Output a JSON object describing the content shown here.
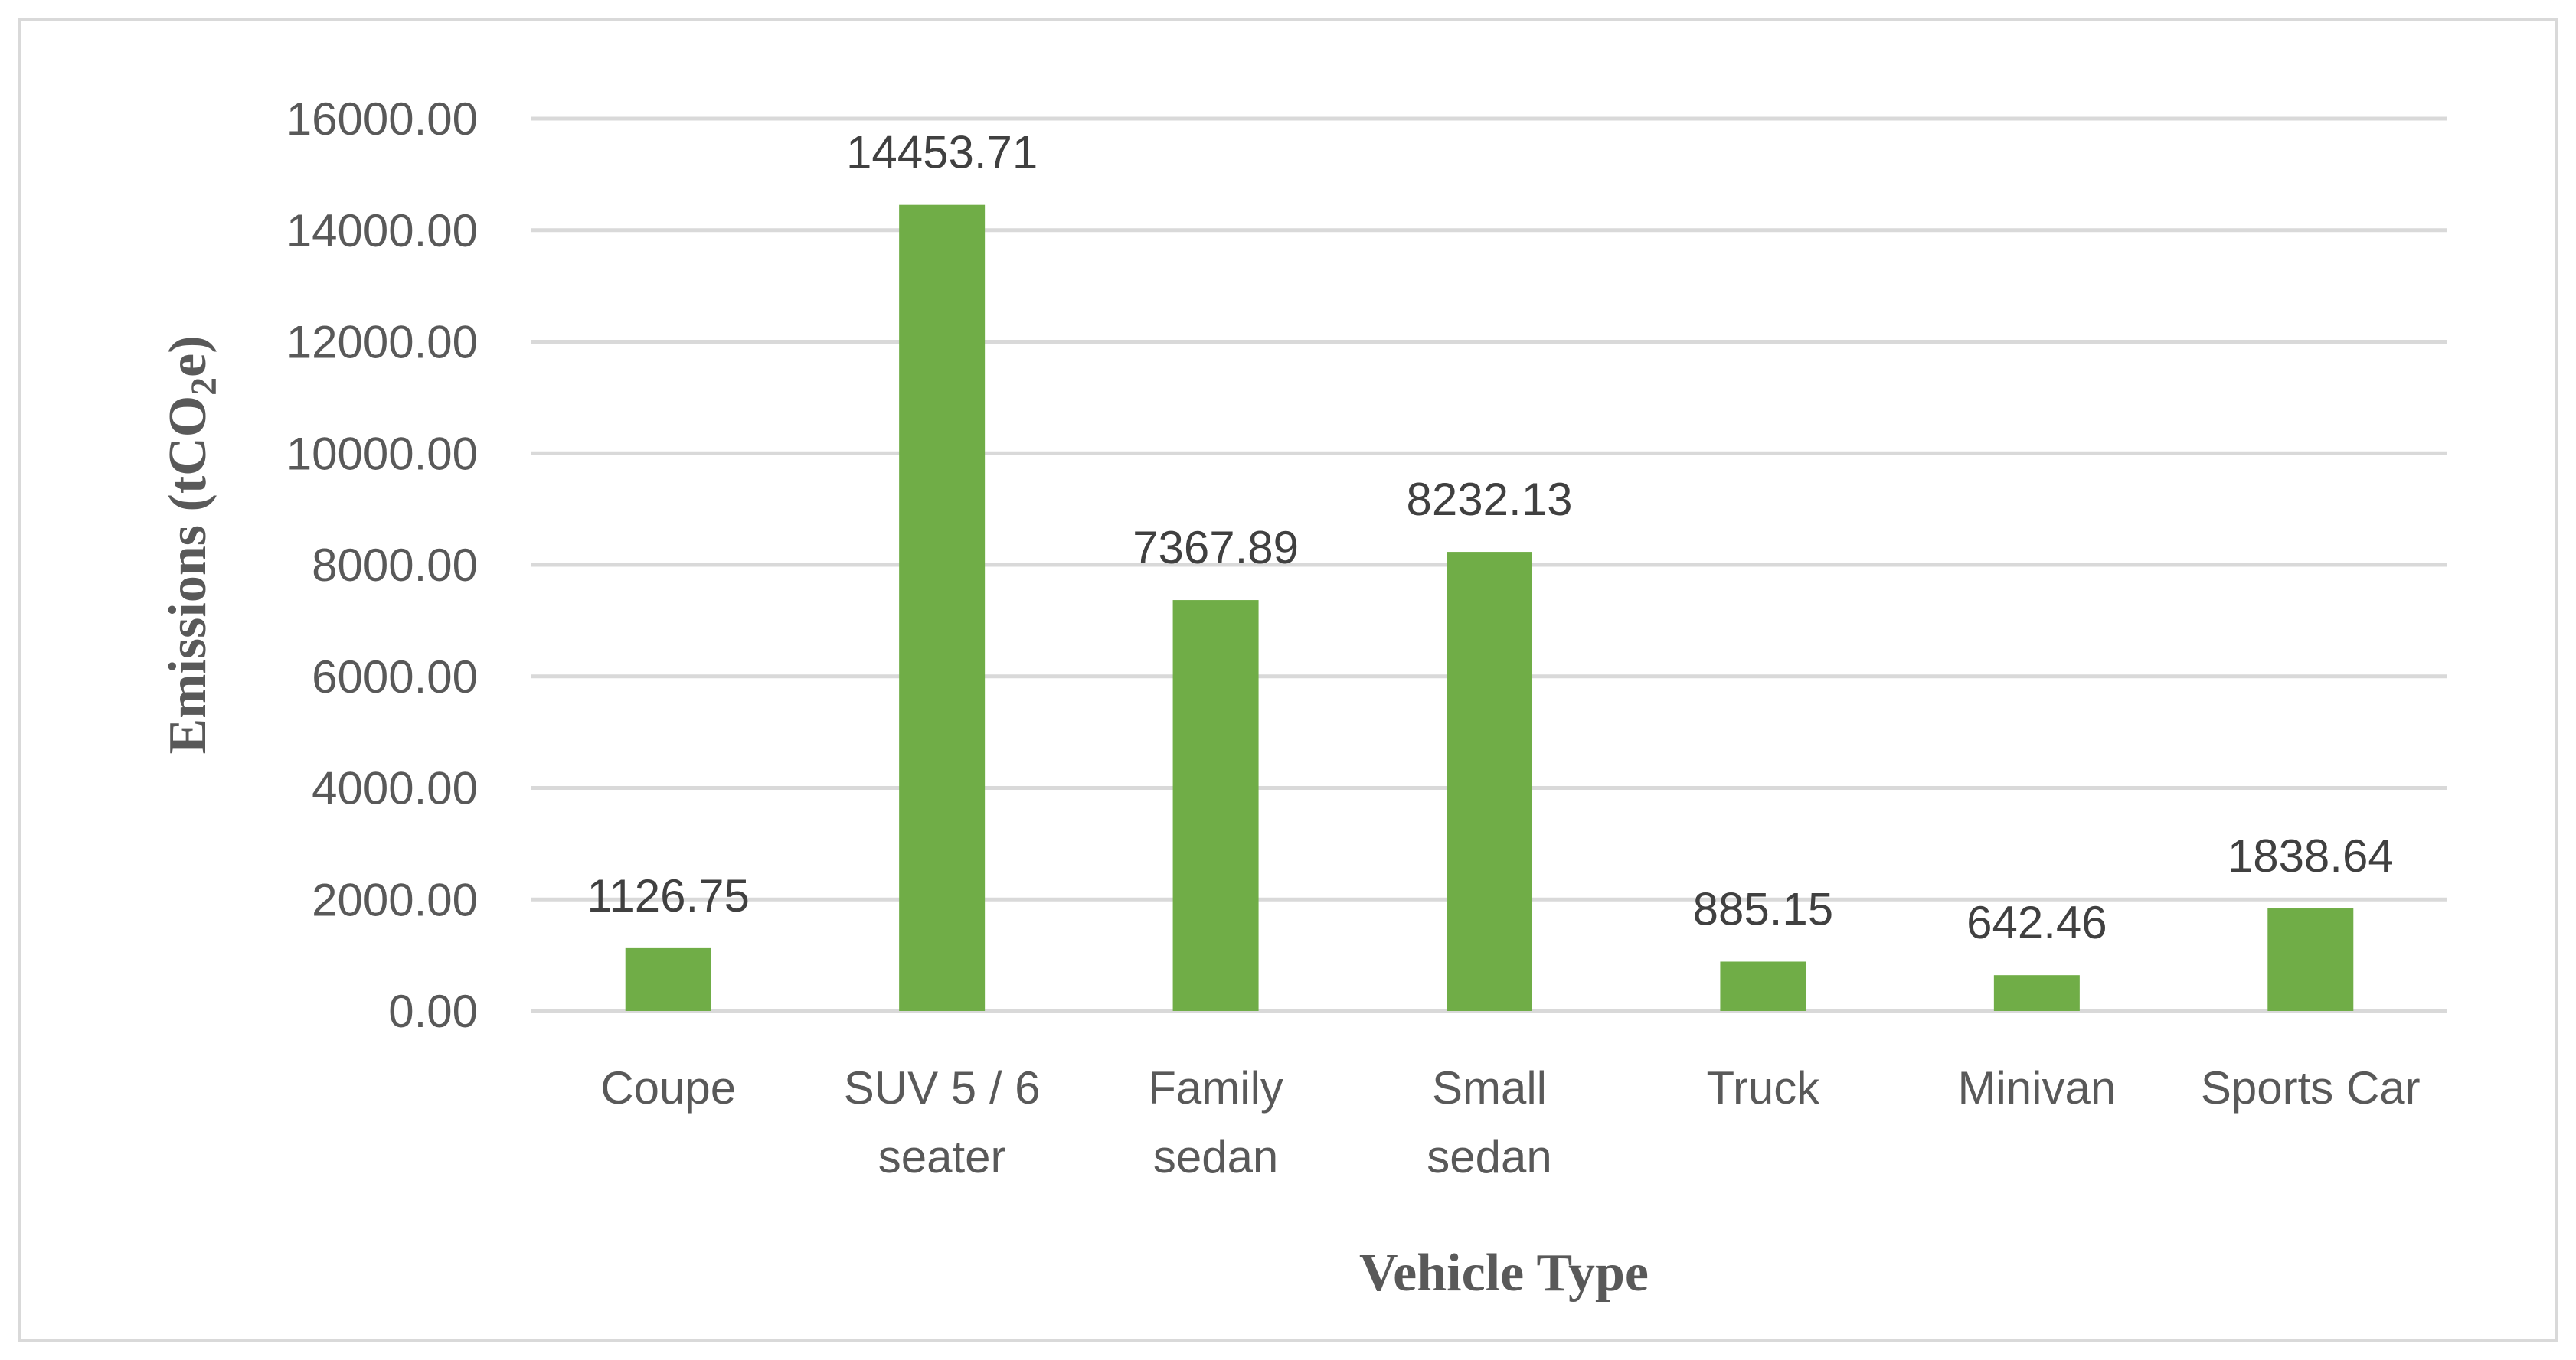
{
  "chart_data": {
    "type": "bar",
    "title": "",
    "categories": [
      [
        "Coupe"
      ],
      [
        "SUV 5 / 6",
        "seater"
      ],
      [
        "Family",
        "sedan"
      ],
      [
        "Small",
        "sedan"
      ],
      [
        "Truck"
      ],
      [
        "Minivan"
      ],
      [
        "Sports Car"
      ]
    ],
    "values": [
      1126.75,
      14453.71,
      7367.89,
      8232.13,
      885.15,
      642.46,
      1838.64
    ],
    "value_labels": [
      "1126.75",
      "14453.71",
      "7367.89",
      "8232.13",
      "885.15",
      "642.46",
      "1838.64"
    ],
    "xlabel": "Vehicle Type",
    "ylabel": {
      "main": "Emissions (tCO",
      "subscript": "2",
      "tail": "e)"
    },
    "ylim": [
      0,
      16000
    ],
    "yticks": [
      "0.00",
      "2000.00",
      "4000.00",
      "6000.00",
      "8000.00",
      "10000.00",
      "12000.00",
      "14000.00",
      "16000.00"
    ],
    "grid": true,
    "bar_color": "#70ad47",
    "grid_color": "#d9d9d9"
  }
}
